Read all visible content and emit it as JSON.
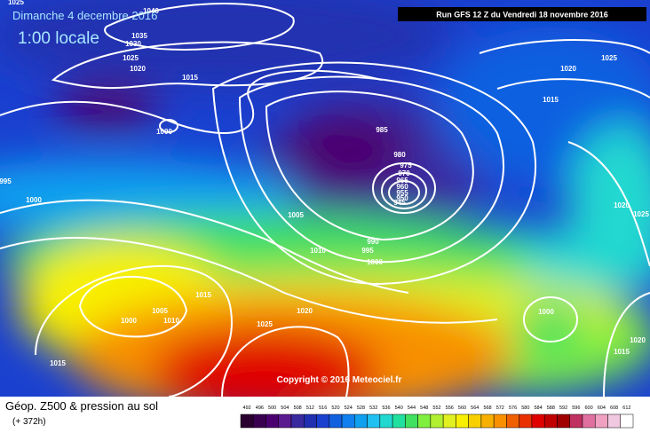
{
  "header": {
    "date": "Dimanche 4 decembre 2016",
    "time": "1:00 locale",
    "run": "Run GFS 12 Z du Vendredi 18 novembre 2016"
  },
  "copyright": "Copyright © 2016 Meteociel.fr",
  "footer": {
    "title": "Géop. Z500 & pression au sol",
    "lead": "(+ 372h)"
  },
  "scale": {
    "labels": [
      492,
      496,
      500,
      504,
      508,
      512,
      516,
      520,
      524,
      528,
      532,
      536,
      540,
      544,
      548,
      552,
      556,
      560,
      564,
      568,
      572,
      576,
      580,
      584,
      588,
      592,
      596,
      600,
      604,
      608,
      612
    ],
    "colors": [
      "#2a0030",
      "#3a0050",
      "#4b0070",
      "#5a1a90",
      "#3a2aa0",
      "#2030b0",
      "#1a40d0",
      "#1060e0",
      "#1080f0",
      "#10a0f0",
      "#20c0f0",
      "#20d8d0",
      "#20e0a0",
      "#40e060",
      "#80f040",
      "#b0f030",
      "#e0f020",
      "#f8f000",
      "#f8d000",
      "#f8b000",
      "#f89000",
      "#f06000",
      "#e83000",
      "#e00000",
      "#c00000",
      "#a00000",
      "#c03060",
      "#e070a0",
      "#f0a0c0",
      "#f0c8e0",
      "#ffffff"
    ]
  },
  "isobar_labels": [
    1040,
    1035,
    1030,
    1025,
    1020,
    1015,
    1000,
    985,
    980,
    975,
    970,
    965,
    960,
    955,
    950,
    945,
    1005,
    1010,
    990,
    995,
    1000,
    1015,
    1005,
    1010,
    1000,
    1020,
    1025,
    1015,
    1000,
    995,
    1025,
    1020,
    1025,
    1015,
    1020,
    1025,
    1000,
    1020,
    1015
  ]
}
